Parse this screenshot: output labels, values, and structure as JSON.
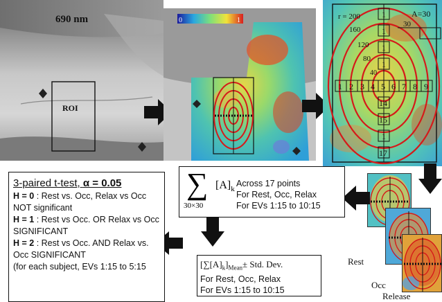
{
  "image_panel": {
    "wavelength_label": "690 nm",
    "roi_label": "ROI"
  },
  "colorbar": {
    "min_label": "0",
    "max_label": "1"
  },
  "radial_grid": {
    "radius_labels": [
      "r = 200",
      "160",
      "120",
      "80",
      "40"
    ],
    "angle_label": "A=30",
    "small_label": "30",
    "row_numbers": [
      "1",
      "2",
      "3",
      "4",
      "5",
      "6",
      "7",
      "8",
      "9"
    ],
    "column_numbers": [
      "1",
      "1",
      "1",
      "1",
      "1",
      "1",
      "1",
      "14",
      "15",
      "1",
      "17"
    ]
  },
  "ttest_box": {
    "title_prefix": "3-paired t-test, ",
    "alpha_label": "α = 0.05",
    "h0_key": "H = 0",
    "h0_text": " :  Rest vs. Occ, Relax vs Occ NOT significant",
    "h1_key": "H = 1",
    "h1_text": " :   Rest vs Occ. OR Relax vs Occ SIGNIFICANT",
    "h2_key": "H = 2",
    "h2_text": " : Rest vs Occ. AND Relax vs. Occ SIGNIFICANT",
    "note": "(for each subject, EVs 1:15 to 5:15"
  },
  "sum_box": {
    "sum_symbol": "∑",
    "term": "[A]",
    "term_subscript": "k",
    "sum_subscript": "30×30",
    "line1": "Across 17 points",
    "line2": "For Rest, Occ, Relax",
    "line3": "For EVs 1:15 to 10:15"
  },
  "mean_box": {
    "formula_prefix": "[∑[A]",
    "formula_subscript": "k",
    "formula_close": "]",
    "formula_mean": "Mean",
    "formula_suffix": "± Std. Dev.",
    "line2": "For Rest, Occ, Relax",
    "line3": "For EVs 1:15 to 10:15"
  },
  "stack_labels": {
    "rest": "Rest",
    "occ": "Occ",
    "release": "Release"
  }
}
